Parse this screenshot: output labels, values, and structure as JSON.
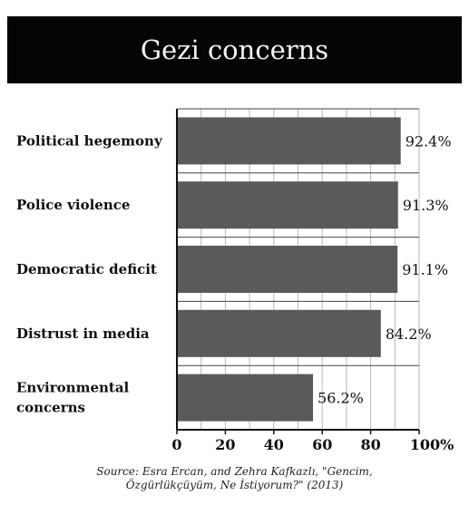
{
  "chart_data": {
    "type": "bar",
    "orientation": "horizontal",
    "title": "Gezi concerns",
    "categories": [
      "Political hegemony",
      "Police violence",
      "Democratic deficit",
      "Distrust in media",
      "Environmental concerns"
    ],
    "category_lines": [
      [
        "Political hegemony"
      ],
      [
        "Police violence"
      ],
      [
        "Democratic deficit"
      ],
      [
        "Distrust in media"
      ],
      [
        "Environmental",
        "concerns"
      ]
    ],
    "values": [
      92.4,
      91.3,
      91.1,
      84.2,
      56.2
    ],
    "value_labels": [
      "92.4%",
      "91.3%",
      "91.1%",
      "84.2%",
      "56.2%"
    ],
    "xlim": [
      0,
      100
    ],
    "x_ticks": [
      0,
      20,
      40,
      60,
      80,
      100
    ],
    "x_tick_labels": [
      "0",
      "20",
      "40",
      "60",
      "80",
      "100%"
    ],
    "grid": true,
    "bar_color": "#5a5a5a",
    "source": [
      "Source: Esra Ercan, and Zehra Kafkazlı, \"Gencim,",
      "Özgürlükçüyüm, Ne İstiyorum?\" (2013)"
    ]
  }
}
